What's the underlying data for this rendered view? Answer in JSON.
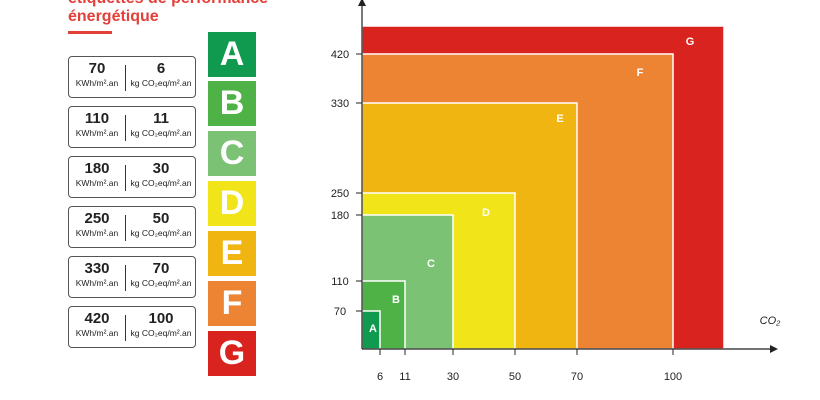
{
  "heading": {
    "line1": "étiquettes de performance",
    "line2": "énergétique"
  },
  "thresholds": [
    {
      "energy": "70",
      "energy_unit": "KWh/m².an",
      "ghg": "6",
      "ghg_unit": "kg CO₂eq/m².an"
    },
    {
      "energy": "110",
      "energy_unit": "KWh/m².an",
      "ghg": "11",
      "ghg_unit": "kg CO₂eq/m².an"
    },
    {
      "energy": "180",
      "energy_unit": "KWh/m².an",
      "ghg": "30",
      "ghg_unit": "kg CO₂eq/m².an"
    },
    {
      "energy": "250",
      "energy_unit": "KWh/m².an",
      "ghg": "50",
      "ghg_unit": "kg CO₂eq/m².an"
    },
    {
      "energy": "330",
      "energy_unit": "KWh/m².an",
      "ghg": "70",
      "ghg_unit": "kg CO₂eq/m².an"
    },
    {
      "energy": "420",
      "energy_unit": "KWh/m².an",
      "ghg": "100",
      "ghg_unit": "kg CO₂eq/m².an"
    }
  ],
  "classes": [
    {
      "letter": "A",
      "color": "#0f9a4f"
    },
    {
      "letter": "B",
      "color": "#4fb247"
    },
    {
      "letter": "C",
      "color": "#7bc275"
    },
    {
      "letter": "D",
      "color": "#f1e51a"
    },
    {
      "letter": "E",
      "color": "#f1b512"
    },
    {
      "letter": "F",
      "color": "#ec8433"
    },
    {
      "letter": "G",
      "color": "#d8231f"
    }
  ],
  "chart_data": {
    "type": "area",
    "xlabel": "CO₂",
    "ylabel": "",
    "x_ticks": [
      6,
      11,
      30,
      50,
      70,
      100
    ],
    "y_ticks": [
      70,
      110,
      180,
      250,
      330,
      420
    ],
    "xlim": [
      0,
      115
    ],
    "ylim": [
      0,
      460
    ],
    "regions": [
      {
        "label": "G",
        "x": 115,
        "y": 460,
        "color": "#d8231f"
      },
      {
        "label": "F",
        "x": 100,
        "y": 420,
        "color": "#ec8433"
      },
      {
        "label": "E",
        "x": 70,
        "y": 330,
        "color": "#f1b512"
      },
      {
        "label": "D",
        "x": 50,
        "y": 250,
        "color": "#f1e51a"
      },
      {
        "label": "C",
        "x": 30,
        "y": 180,
        "color": "#7bc275"
      },
      {
        "label": "B",
        "x": 11,
        "y": 110,
        "color": "#4fb247"
      },
      {
        "label": "A",
        "x": 6,
        "y": 70,
        "color": "#0f9a4f"
      }
    ]
  }
}
